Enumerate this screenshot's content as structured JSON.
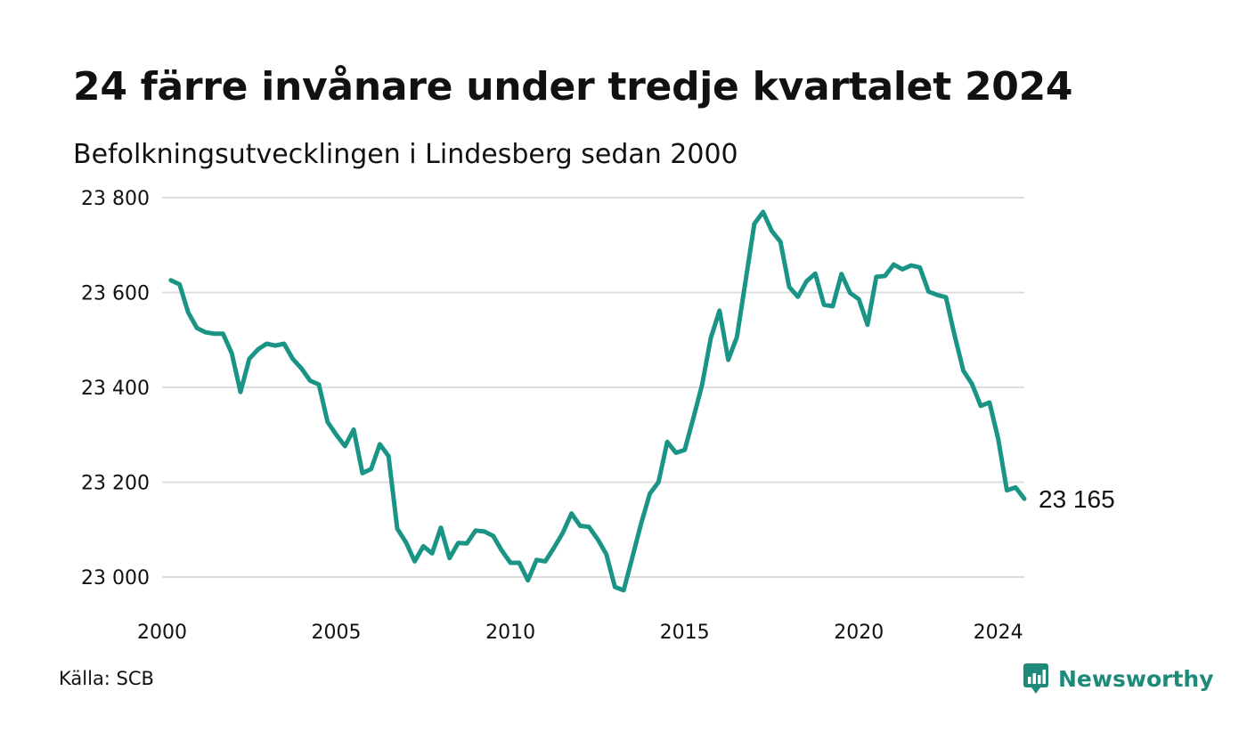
{
  "header": {
    "title": "24 färre invånare under tredje kvartalet 2024",
    "subtitle": "Befolkningsutvecklingen i Lindesberg sedan 2000"
  },
  "footer": {
    "source": "Källa: SCB",
    "brand": "Newsworthy"
  },
  "colors": {
    "line": "#1a9485",
    "grid": "#dddddd",
    "brand": "#1f8a7a"
  },
  "chart_data": {
    "type": "line",
    "title": "24 färre invånare under tredje kvartalet 2024",
    "subtitle": "Befolkningsutvecklingen i Lindesberg sedan 2000",
    "xlabel": "",
    "ylabel": "",
    "xlim": [
      2000,
      2024.75
    ],
    "ylim": [
      22920,
      23800
    ],
    "x_ticks": [
      2000,
      2005,
      2010,
      2015,
      2020,
      2024
    ],
    "y_ticks": [
      23000,
      23200,
      23400,
      23600,
      23800
    ],
    "y_tick_labels": [
      "23 000",
      "23 200",
      "23 400",
      "23 600",
      "23 800"
    ],
    "grid": true,
    "end_label": "23 165",
    "series": [
      {
        "x": [
          2000.25,
          2000.5,
          2000.75,
          2001.0,
          2001.25,
          2001.5,
          2001.75,
          2002.0,
          2002.25,
          2002.5,
          2002.75,
          2003.0,
          2003.25,
          2003.5,
          2003.75,
          2004.0,
          2004.25,
          2004.5,
          2004.75,
          2005.0,
          2005.25,
          2005.5,
          2005.75,
          2006.0,
          2006.25,
          2006.5,
          2006.75,
          2007.0,
          2007.25,
          2007.5,
          2007.75,
          2008.0,
          2008.25,
          2008.5,
          2008.75,
          2009.0,
          2009.25,
          2009.5,
          2009.75,
          2010.0,
          2010.25,
          2010.5,
          2010.75,
          2011.0,
          2011.25,
          2011.5,
          2011.75,
          2012.0,
          2012.25,
          2012.5,
          2012.75,
          2013.0,
          2013.25,
          2013.5,
          2013.75,
          2014.0,
          2014.25,
          2014.5,
          2014.75,
          2015.0,
          2015.25,
          2015.5,
          2015.75,
          2016.0,
          2016.25,
          2016.5,
          2016.75,
          2017.0,
          2017.25,
          2017.5,
          2017.75,
          2018.0,
          2018.25,
          2018.5,
          2018.75,
          2019.0,
          2019.25,
          2019.5,
          2019.75,
          2020.0,
          2020.25,
          2020.5,
          2020.75,
          2021.0,
          2021.25,
          2021.5,
          2021.75,
          2022.0,
          2022.25,
          2022.5,
          2022.75,
          2023.0,
          2023.25,
          2023.5,
          2023.75,
          2024.0,
          2024.25,
          2024.5,
          2024.75
        ],
        "values": [
          23626,
          23617,
          23558,
          23525,
          23516,
          23513,
          23513,
          23472,
          23390,
          23460,
          23480,
          23492,
          23488,
          23492,
          23460,
          23440,
          23414,
          23406,
          23327,
          23300,
          23276,
          23311,
          23219,
          23228,
          23280,
          23255,
          23102,
          23073,
          23033,
          23065,
          23050,
          23104,
          23040,
          23072,
          23071,
          23098,
          23096,
          23087,
          23056,
          23030,
          23030,
          22993,
          23036,
          23033,
          23062,
          23093,
          23134,
          23108,
          23106,
          23080,
          23048,
          22979,
          22972,
          23042,
          23113,
          23176,
          23200,
          23285,
          23262,
          23268,
          23335,
          23405,
          23504,
          23562,
          23458,
          23506,
          23625,
          23745,
          23770,
          23730,
          23707,
          23612,
          23591,
          23624,
          23640,
          23574,
          23571,
          23639,
          23599,
          23586,
          23532,
          23633,
          23635,
          23659,
          23649,
          23657,
          23653,
          23602,
          23595,
          23590,
          23509,
          23435,
          23407,
          23361,
          23368,
          23291,
          23183,
          23189,
          23165
        ]
      }
    ]
  }
}
